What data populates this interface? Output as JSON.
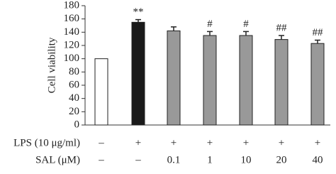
{
  "chart_data": {
    "type": "bar",
    "y_label": "Cell viability",
    "ylim": [
      0,
      180
    ],
    "yticks": [
      0,
      20,
      40,
      60,
      80,
      100,
      120,
      140,
      160,
      180
    ],
    "values": [
      100,
      155,
      142,
      135,
      135,
      129,
      123
    ],
    "errors": [
      null,
      4,
      6,
      6,
      6,
      6,
      5
    ],
    "colors": [
      "#ffffff",
      "#1a1a1a",
      "#999999",
      "#999999",
      "#999999",
      "#999999",
      "#999999"
    ],
    "annotations": [
      null,
      "**",
      null,
      "#",
      "#",
      "##",
      "##"
    ],
    "condition_rows": [
      {
        "label": "LPS (10 μg/ml)",
        "cells": [
          "–",
          "+",
          "+",
          "+",
          "+",
          "+",
          "+"
        ]
      },
      {
        "label": "SAL (μM)",
        "cells": [
          "–",
          "–",
          "0.1",
          "1",
          "10",
          "20",
          "40"
        ]
      }
    ]
  }
}
